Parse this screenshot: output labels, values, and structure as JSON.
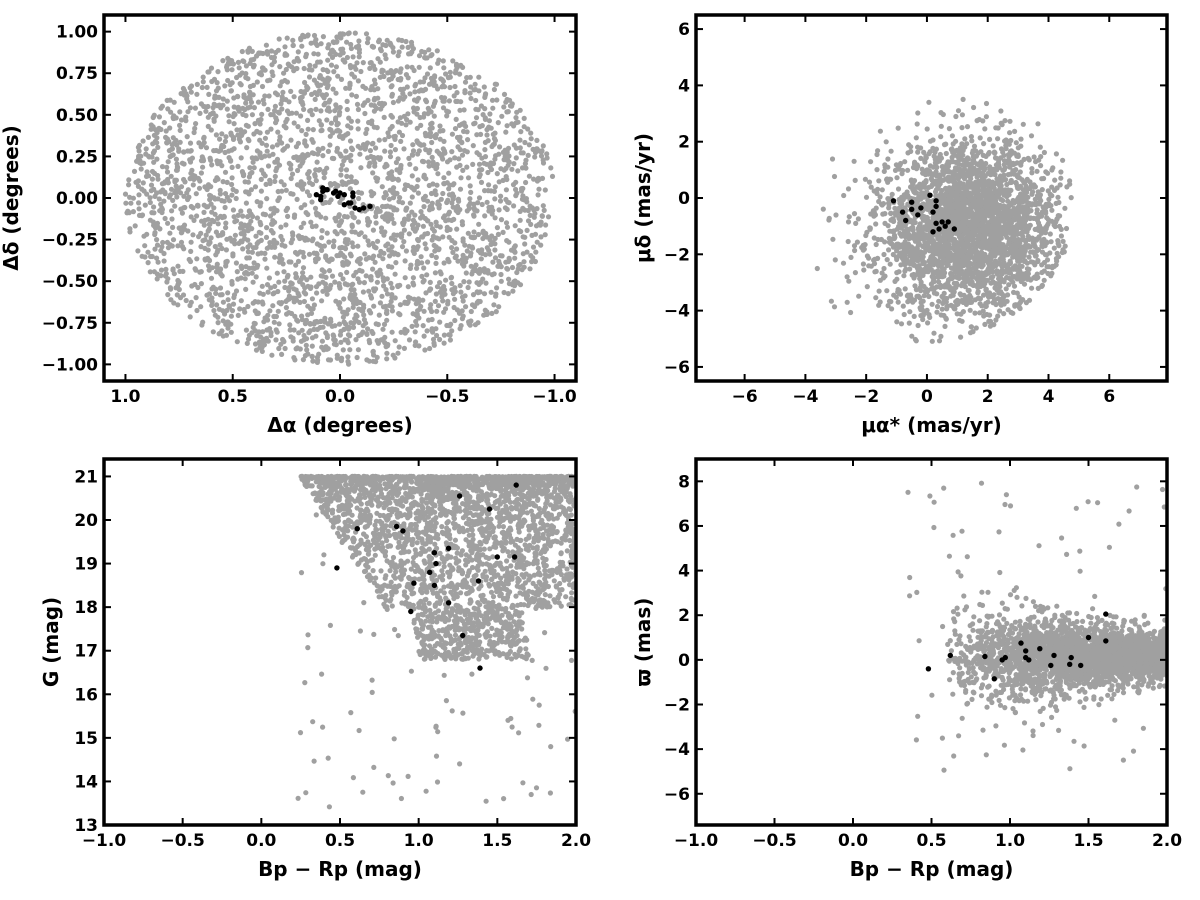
{
  "figure": {
    "background": "#ffffff",
    "field_color": "#a0a0a0",
    "member_color": "#000000"
  },
  "chart_data": [
    {
      "id": "panel-sky",
      "type": "scatter",
      "title": "",
      "xlabel": "Δα (degrees)",
      "ylabel": "Δδ (degrees)",
      "xlim": [
        1.1,
        -1.1
      ],
      "ylim": [
        -1.1,
        1.1
      ],
      "x_inverted": true,
      "xticks": [
        1.0,
        0.5,
        0.0,
        -0.5,
        -1.0
      ],
      "xtick_labels": [
        "1.0",
        "0.5",
        "0.0",
        "−0.5",
        "−1.0"
      ],
      "yticks": [
        1.0,
        0.75,
        0.5,
        0.25,
        0.0,
        -0.25,
        -0.5,
        -0.75,
        -1.0
      ],
      "ytick_labels": [
        "1.00",
        "0.75",
        "0.50",
        "0.25",
        "0.00",
        "−0.25",
        "−0.50",
        "−0.75",
        "−1.00"
      ],
      "grid": false,
      "series": [
        {
          "role": "field",
          "color": "#a0a0a0",
          "distribution": {
            "shape": "disk",
            "center": [
              0,
              0
            ],
            "radius": 1.0,
            "count": 3000
          }
        },
        {
          "role": "members",
          "color": "#000000",
          "points": [
            [
              0.11,
              0.02
            ],
            [
              0.09,
              -0.01
            ],
            [
              0.09,
              0.01
            ],
            [
              0.08,
              0.06
            ],
            [
              0.08,
              0.04
            ],
            [
              0.07,
              0.05
            ],
            [
              0.06,
              0.05
            ],
            [
              0.03,
              0.03
            ],
            [
              0.02,
              0.04
            ],
            [
              0.01,
              0.01
            ],
            [
              0.0,
              0.03
            ],
            [
              -0.02,
              -0.04
            ],
            [
              -0.02,
              0.02
            ],
            [
              -0.04,
              -0.03
            ],
            [
              -0.05,
              -0.03
            ],
            [
              -0.06,
              0.01
            ],
            [
              -0.06,
              0.03
            ],
            [
              -0.07,
              -0.06
            ],
            [
              -0.09,
              -0.07
            ],
            [
              -0.11,
              -0.06
            ],
            [
              -0.14,
              -0.05
            ]
          ]
        }
      ]
    },
    {
      "id": "panel-pm",
      "type": "scatter",
      "title": "",
      "xlabel": "μα* (mas/yr)",
      "ylabel": "μδ (mas/yr)",
      "xlim": [
        -7.6,
        7.9
      ],
      "ylim": [
        -6.5,
        6.5
      ],
      "x_inverted": false,
      "xticks": [
        -6,
        -4,
        -2,
        0,
        2,
        4,
        6
      ],
      "xtick_labels": [
        "−6",
        "−4",
        "−2",
        "0",
        "2",
        "4",
        "6"
      ],
      "yticks": [
        6,
        4,
        2,
        0,
        -2,
        -4,
        -6
      ],
      "ytick_labels": [
        "6",
        "4",
        "2",
        "0",
        "−2",
        "−4",
        "−6"
      ],
      "grid": false,
      "series": [
        {
          "role": "field",
          "color": "#a0a0a0",
          "distribution": {
            "shape": "gaussian-clipped",
            "center": [
              1.4,
              -1.1
            ],
            "sigma": [
              1.5,
              1.5
            ],
            "clip_radius": 4.8,
            "clip_center": [
              0.0,
              -0.3
            ],
            "count": 3000
          }
        },
        {
          "role": "members",
          "color": "#000000",
          "points": [
            [
              -1.1,
              -0.1
            ],
            [
              -0.8,
              -0.5
            ],
            [
              -0.7,
              -0.8
            ],
            [
              -0.5,
              -0.15
            ],
            [
              -0.5,
              -0.4
            ],
            [
              -0.3,
              -0.6
            ],
            [
              -0.2,
              -0.35
            ],
            [
              0.1,
              0.1
            ],
            [
              0.2,
              -0.5
            ],
            [
              0.2,
              -1.2
            ],
            [
              0.3,
              -0.9
            ],
            [
              0.3,
              -0.3
            ],
            [
              0.3,
              -0.1
            ],
            [
              0.4,
              -1.1
            ],
            [
              0.5,
              -0.85
            ],
            [
              0.6,
              -1.0
            ],
            [
              0.7,
              -0.85
            ],
            [
              0.9,
              -1.1
            ]
          ]
        }
      ]
    },
    {
      "id": "panel-cmd",
      "type": "scatter",
      "title": "",
      "xlabel": "Bp − Rp (mag)",
      "ylabel": "G (mag)",
      "xlim": [
        -1.0,
        2.0
      ],
      "ylim": [
        13.0,
        21.4
      ],
      "y_inverted": false,
      "xticks": [
        -1.0,
        -0.5,
        0.0,
        0.5,
        1.0,
        1.5,
        2.0
      ],
      "xtick_labels": [
        "−1.0",
        "−0.5",
        "0.0",
        "0.5",
        "1.0",
        "1.5",
        "2.0"
      ],
      "yticks": [
        21,
        20,
        19,
        18,
        17,
        16,
        15,
        14,
        13
      ],
      "ytick_labels": [
        "21",
        "20",
        "19",
        "18",
        "17",
        "16",
        "15",
        "14",
        "13"
      ],
      "grid": false,
      "series": [
        {
          "role": "field",
          "color": "#a0a0a0",
          "distribution": {
            "shape": "color-magnitude",
            "x_range": [
              0.6,
              2.0
            ],
            "y_range": [
              15.5,
              21.0
            ],
            "count": 3000
          }
        },
        {
          "role": "members",
          "color": "#000000",
          "points": [
            [
              0.48,
              18.9
            ],
            [
              0.61,
              19.8
            ],
            [
              0.86,
              19.85
            ],
            [
              0.9,
              19.75
            ],
            [
              0.95,
              17.9
            ],
            [
              0.97,
              18.55
            ],
            [
              1.07,
              18.8
            ],
            [
              1.1,
              18.5
            ],
            [
              1.1,
              19.25
            ],
            [
              1.11,
              19.0
            ],
            [
              1.19,
              18.1
            ],
            [
              1.19,
              19.35
            ],
            [
              1.26,
              20.55
            ],
            [
              1.28,
              17.35
            ],
            [
              1.38,
              18.6
            ],
            [
              1.39,
              16.6
            ],
            [
              1.45,
              20.25
            ],
            [
              1.5,
              19.15
            ],
            [
              1.61,
              19.15
            ],
            [
              1.62,
              20.8
            ]
          ]
        }
      ]
    },
    {
      "id": "panel-parallax",
      "type": "scatter",
      "title": "",
      "xlabel": "Bp − Rp (mag)",
      "ylabel": "ϖ (mas)",
      "xlim": [
        -1.0,
        2.0
      ],
      "ylim": [
        -7.4,
        9.0
      ],
      "xticks": [
        -1.0,
        -0.5,
        0.0,
        0.5,
        1.0,
        1.5,
        2.0
      ],
      "xtick_labels": [
        "−1.0",
        "−0.5",
        "0.0",
        "0.5",
        "1.0",
        "1.5",
        "2.0"
      ],
      "yticks": [
        8,
        6,
        4,
        2,
        0,
        -2,
        -4,
        -6
      ],
      "ytick_labels": [
        "8",
        "6",
        "4",
        "2",
        "0",
        "−2",
        "−4",
        "−6"
      ],
      "grid": false,
      "series": [
        {
          "role": "field",
          "color": "#a0a0a0",
          "distribution": {
            "shape": "band",
            "x_range": [
              0.6,
              2.0
            ],
            "center_y": 0.2,
            "sigma_y": 0.9,
            "count": 3000
          }
        },
        {
          "role": "members",
          "color": "#000000",
          "points": [
            [
              0.48,
              -0.4
            ],
            [
              0.62,
              0.2
            ],
            [
              0.84,
              0.15
            ],
            [
              0.9,
              -0.85
            ],
            [
              0.95,
              0.0
            ],
            [
              0.97,
              0.1
            ],
            [
              1.07,
              0.75
            ],
            [
              1.1,
              0.1
            ],
            [
              1.1,
              0.4
            ],
            [
              1.12,
              0.0
            ],
            [
              1.19,
              0.5
            ],
            [
              1.26,
              -0.25
            ],
            [
              1.28,
              0.2
            ],
            [
              1.38,
              -0.2
            ],
            [
              1.39,
              0.1
            ],
            [
              1.45,
              -0.25
            ],
            [
              1.5,
              1.0
            ],
            [
              1.61,
              0.85
            ],
            [
              1.61,
              2.05
            ]
          ]
        }
      ]
    }
  ]
}
